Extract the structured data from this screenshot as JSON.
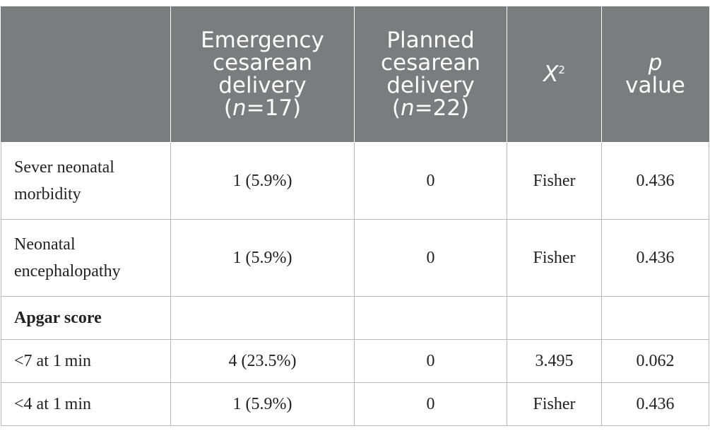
{
  "table": {
    "headers": {
      "col1_line1": "Emergency",
      "col1_line2": "cesarean",
      "col1_line3": "delivery",
      "col1_n_pre": "(",
      "col1_n_var": "n",
      "col1_n_post": "=17)",
      "col2_line1": "Planned",
      "col2_line2": "cesarean",
      "col2_line3": "delivery",
      "col2_n_pre": "(",
      "col2_n_var": "n",
      "col2_n_post": "=22)",
      "col3_symbol": "X",
      "col3_sup": "2",
      "col4_line1": "p",
      "col4_line2": "value"
    },
    "rows": [
      {
        "label": "Sever neonatal morbidity",
        "emergency": "1 (5.9%)",
        "planned": "0",
        "x2": "Fisher",
        "p": "0.436"
      },
      {
        "label": "Neonatal encephalopathy",
        "emergency": "1 (5.9%)",
        "planned": "0",
        "x2": "Fisher",
        "p": "0.436"
      },
      {
        "label": "Apgar score",
        "emergency": "",
        "planned": "",
        "x2": "",
        "p": ""
      },
      {
        "label": "<7 at 1 min",
        "emergency": "4 (23.5%)",
        "planned": "0",
        "x2": "3.495",
        "p": "0.062"
      },
      {
        "label": "<4 at 1 min",
        "emergency": "1 (5.9%)",
        "planned": "0",
        "x2": "Fisher",
        "p": "0.436"
      }
    ]
  }
}
